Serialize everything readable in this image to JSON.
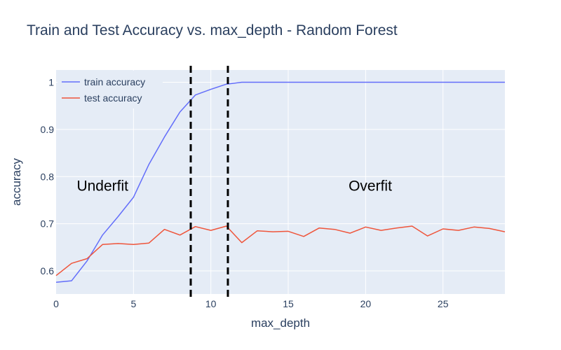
{
  "chart_data": {
    "type": "line",
    "title": "Train and Test Accuracy vs. max_depth - Random Forest",
    "xlabel": "max_depth",
    "ylabel": "accuracy",
    "xlim": [
      0,
      29
    ],
    "ylim": [
      0.551,
      1.026
    ],
    "xticks": [
      0,
      5,
      10,
      15,
      20,
      25
    ],
    "yticks": [
      0.6,
      0.7,
      0.8,
      0.9,
      1
    ],
    "grid": true,
    "legend_position": "top-left",
    "x": [
      0,
      1,
      2,
      3,
      4,
      5,
      6,
      7,
      8,
      9,
      10,
      11,
      12,
      13,
      14,
      15,
      16,
      17,
      18,
      19,
      20,
      21,
      22,
      23,
      24,
      25,
      26,
      27,
      28,
      29
    ],
    "series": [
      {
        "name": "train accuracy",
        "color": "#636efa",
        "values": [
          0.576,
          0.579,
          0.621,
          0.676,
          0.715,
          0.756,
          0.826,
          0.884,
          0.937,
          0.973,
          0.985,
          0.996,
          1.0,
          1.0,
          1.0,
          1.0,
          1.0,
          1.0,
          1.0,
          1.0,
          1.0,
          1.0,
          1.0,
          1.0,
          1.0,
          1.0,
          1.0,
          1.0,
          1.0,
          1.0
        ]
      },
      {
        "name": "test accuracy",
        "color": "#ef553b",
        "values": [
          0.59,
          0.616,
          0.626,
          0.656,
          0.658,
          0.656,
          0.659,
          0.688,
          0.676,
          0.694,
          0.686,
          0.695,
          0.66,
          0.685,
          0.683,
          0.684,
          0.673,
          0.691,
          0.688,
          0.68,
          0.693,
          0.686,
          0.691,
          0.695,
          0.674,
          0.689,
          0.686,
          0.693,
          0.69,
          0.683
        ]
      }
    ],
    "vlines": [
      {
        "name": "vline-left",
        "x": 8.7,
        "style": "dashed",
        "color": "#000000"
      },
      {
        "name": "vline-right",
        "x": 11.1,
        "style": "dashed",
        "color": "#000000"
      }
    ],
    "annotations": [
      {
        "name": "underfit",
        "text": "Underfit",
        "x": 3.0,
        "y": 0.77
      },
      {
        "name": "overfit",
        "text": "Overfit",
        "x": 20.3,
        "y": 0.77
      }
    ]
  }
}
